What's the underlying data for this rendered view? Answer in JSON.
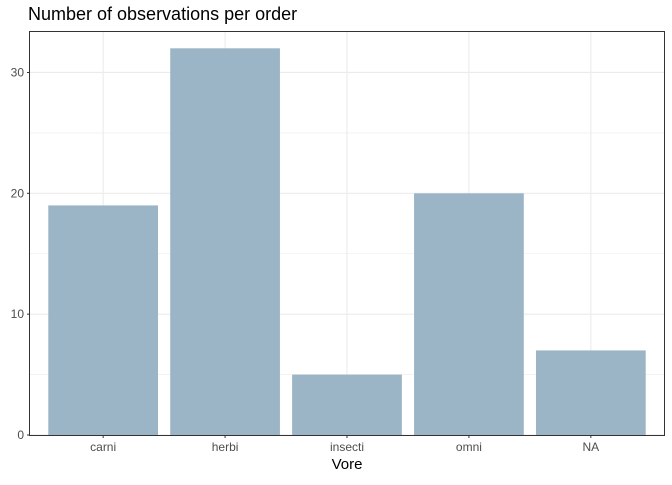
{
  "chart_data": {
    "type": "bar",
    "title": "Number of observations per order",
    "xlabel": "Vore",
    "ylabel": "",
    "categories": [
      "carni",
      "herbi",
      "insecti",
      "omni",
      "NA"
    ],
    "values": [
      19,
      32,
      5,
      20,
      7
    ],
    "ylim": [
      0,
      33.35
    ],
    "yticks": [
      0,
      10,
      20,
      30
    ],
    "ytick_labels": [
      "0",
      "10",
      "20",
      "30"
    ],
    "grid": true,
    "legend": "none",
    "colors": {
      "bar": "#9bb5c7",
      "grid": "#ebebeb",
      "panel_border": "#333333",
      "text": "#000000",
      "tick_text": "#4d4d4d"
    }
  }
}
